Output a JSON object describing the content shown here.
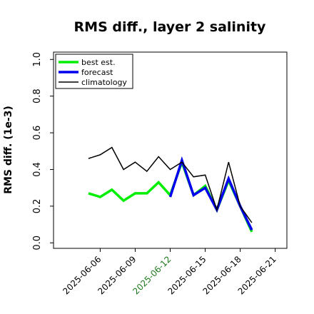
{
  "chart_data": {
    "type": "line",
    "title": "RMS diff., layer 2 salinity",
    "ylabel": "RMS diff. (1e-3)",
    "xlabel": "",
    "ylim": [
      -0.03,
      1.04
    ],
    "xlim": [
      "2025-06-02",
      "2025-06-22"
    ],
    "yticks": [
      0.0,
      0.2,
      0.4,
      0.6,
      0.8,
      1.0
    ],
    "ytick_labels": [
      "0.0",
      "0.2",
      "0.4",
      "0.6",
      "0.8",
      "1.0"
    ],
    "xticks": [
      "2025-06-06",
      "2025-06-09",
      "2025-06-12",
      "2025-06-15",
      "2025-06-18",
      "2025-06-21"
    ],
    "xtick_labels": [
      "2025-06-06",
      "2025-06-09",
      "2025-06-12",
      "2025-06-15",
      "2025-06-18",
      "2025-06-21"
    ],
    "highlighted_xtick": "2025-06-12",
    "highlight_color": "#1f7a1f",
    "grid": false,
    "legend_position": "top-left",
    "series": [
      {
        "name": "best est.",
        "color": "#00ee00",
        "x": [
          "2025-06-05",
          "2025-06-06",
          "2025-06-07",
          "2025-06-08",
          "2025-06-09",
          "2025-06-10",
          "2025-06-11",
          "2025-06-12",
          "2025-06-13",
          "2025-06-14",
          "2025-06-15",
          "2025-06-16",
          "2025-06-17",
          "2025-06-18",
          "2025-06-19"
        ],
        "y": [
          0.27,
          0.25,
          0.29,
          0.23,
          0.27,
          0.27,
          0.33,
          0.26,
          0.44,
          0.26,
          0.31,
          0.18,
          0.34,
          0.2,
          0.06
        ]
      },
      {
        "name": "forecast",
        "color": "#0000ee",
        "x": [
          "2025-06-12",
          "2025-06-13",
          "2025-06-14",
          "2025-06-15",
          "2025-06-16",
          "2025-06-17",
          "2025-06-18",
          "2025-06-19"
        ],
        "y": [
          0.25,
          0.45,
          0.26,
          0.3,
          0.18,
          0.35,
          0.2,
          0.07
        ]
      },
      {
        "name": "climatology",
        "color": "#000000",
        "x": [
          "2025-06-05",
          "2025-06-06",
          "2025-06-07",
          "2025-06-08",
          "2025-06-09",
          "2025-06-10",
          "2025-06-11",
          "2025-06-12",
          "2025-06-13",
          "2025-06-14",
          "2025-06-15",
          "2025-06-16",
          "2025-06-17",
          "2025-06-18",
          "2025-06-19"
        ],
        "y": [
          0.46,
          0.48,
          0.52,
          0.4,
          0.44,
          0.39,
          0.47,
          0.4,
          0.44,
          0.36,
          0.37,
          0.18,
          0.44,
          0.2,
          0.11
        ]
      }
    ]
  }
}
